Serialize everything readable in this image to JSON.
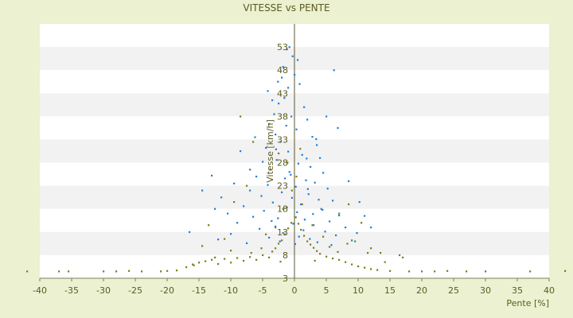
{
  "chart_data": {
    "type": "scatter",
    "title": "VITESSE vs PENTE",
    "xlabel": "Pente [%]",
    "ylabel": "Vitesse [km/h]",
    "xlim": [
      -40,
      40
    ],
    "ylim": [
      3,
      58
    ],
    "x_ticks": [
      -40,
      -35,
      -30,
      -25,
      -20,
      -15,
      -10,
      -5,
      0,
      5,
      10,
      15,
      20,
      25,
      30,
      35,
      40
    ],
    "y_ticks": [
      3,
      8,
      13,
      18,
      23,
      28,
      33,
      38,
      43,
      48,
      53
    ],
    "band_colors": [
      "#ffffff",
      "#f2f2f2"
    ],
    "plot_background": "#ffffff",
    "page_background": "#ebf1d1",
    "legend": "none",
    "series": [
      {
        "color": "#1f7fd9",
        "points": [
          [
            -1.2,
            52.5
          ],
          [
            -0.3,
            51.0
          ],
          [
            0.5,
            50.2
          ],
          [
            -1.8,
            48.7
          ],
          [
            -2.0,
            46.4
          ],
          [
            0.8,
            45.0
          ],
          [
            -1.0,
            44.2
          ],
          [
            -3.5,
            41.5
          ],
          [
            -2.5,
            40.8
          ],
          [
            1.5,
            40.0
          ],
          [
            -3.2,
            38.5
          ],
          [
            -0.5,
            38.0
          ],
          [
            2.0,
            37.3
          ],
          [
            -4.0,
            36.4
          ],
          [
            0.3,
            35.2
          ],
          [
            -3.0,
            34.1
          ],
          [
            2.8,
            33.6
          ],
          [
            -2.2,
            32.5
          ],
          [
            3.5,
            31.8
          ],
          [
            -4.5,
            31.2
          ],
          [
            -1.0,
            30.4
          ],
          [
            1.2,
            29.7
          ],
          [
            4.0,
            29.0
          ],
          [
            -5.0,
            28.2
          ],
          [
            -2.8,
            28.6
          ],
          [
            0.6,
            27.8
          ],
          [
            2.5,
            27.1
          ],
          [
            -3.8,
            26.5
          ],
          [
            -0.8,
            26.0
          ],
          [
            4.5,
            25.8
          ],
          [
            -6.0,
            25.0
          ],
          [
            -1.5,
            24.6
          ],
          [
            1.8,
            24.2
          ],
          [
            3.2,
            23.7
          ],
          [
            -4.2,
            23.2
          ],
          [
            0.2,
            22.8
          ],
          [
            5.2,
            22.4
          ],
          [
            -7.0,
            22.0
          ],
          [
            -2.0,
            21.6
          ],
          [
            2.2,
            21.2
          ],
          [
            -5.2,
            20.8
          ],
          [
            -0.4,
            20.4
          ],
          [
            3.8,
            20.0
          ],
          [
            6.0,
            19.8
          ],
          [
            -3.4,
            19.4
          ],
          [
            1.0,
            19.0
          ],
          [
            -8.0,
            18.6
          ],
          [
            -1.2,
            18.3
          ],
          [
            4.2,
            18.0
          ],
          [
            -4.8,
            17.6
          ],
          [
            0.4,
            17.3
          ],
          [
            2.9,
            16.9
          ],
          [
            7.0,
            16.6
          ],
          [
            -6.5,
            16.3
          ],
          [
            -2.6,
            16.0
          ],
          [
            1.6,
            15.7
          ],
          [
            5.5,
            15.3
          ],
          [
            -9.0,
            15.0
          ],
          [
            -0.2,
            14.8
          ],
          [
            3.0,
            14.5
          ],
          [
            -3.0,
            14.2
          ],
          [
            8.0,
            14.0
          ],
          [
            -5.5,
            13.7
          ],
          [
            1.4,
            13.4
          ],
          [
            4.8,
            13.1
          ],
          [
            -1.8,
            12.8
          ],
          [
            -10.0,
            12.6
          ],
          [
            6.5,
            12.3
          ],
          [
            0.7,
            12.0
          ],
          [
            -4.0,
            11.8
          ],
          [
            2.4,
            11.5
          ],
          [
            -12.0,
            11.4
          ],
          [
            9.0,
            11.2
          ],
          [
            -2.3,
            11.0
          ],
          [
            3.6,
            10.8
          ],
          [
            -7.5,
            10.6
          ],
          [
            0.1,
            10.4
          ],
          [
            5.8,
            10.2
          ],
          [
            -14.5,
            22.0
          ],
          [
            -13.0,
            25.2
          ],
          [
            -11.5,
            20.5
          ],
          [
            -10.5,
            17.0
          ],
          [
            11.0,
            16.5
          ],
          [
            10.2,
            19.5
          ],
          [
            -16.5,
            13.0
          ],
          [
            -6.2,
            33.5
          ],
          [
            -8.5,
            30.5
          ],
          [
            6.8,
            35.5
          ],
          [
            5.0,
            38.0
          ],
          [
            -1.6,
            42.0
          ],
          [
            6.2,
            48.0
          ],
          [
            -0.8,
            53.0
          ],
          [
            -4.2,
            43.5
          ],
          [
            -2.6,
            45.5
          ],
          [
            0.0,
            47.0
          ],
          [
            -7.0,
            26.5
          ],
          [
            8.5,
            24.0
          ],
          [
            -9.5,
            23.5
          ],
          [
            -12.5,
            18.0
          ],
          [
            12.0,
            14.0
          ],
          [
            9.8,
            12.8
          ],
          [
            -3.6,
            15.4
          ],
          [
            4.4,
            17.8
          ],
          [
            2.1,
            22.3
          ],
          [
            -0.6,
            25.4
          ],
          [
            1.9,
            28.9
          ],
          [
            -2.9,
            30.9
          ],
          [
            3.4,
            33.1
          ],
          [
            -1.3,
            36.0
          ]
        ]
      },
      {
        "color": "#7d7d14",
        "points": [
          [
            -42.0,
            4.5
          ],
          [
            -37.0,
            4.5
          ],
          [
            -35.5,
            4.5
          ],
          [
            -30.0,
            4.5
          ],
          [
            -28.0,
            4.5
          ],
          [
            -26.0,
            4.6
          ],
          [
            -24.0,
            4.5
          ],
          [
            -21.0,
            4.5
          ],
          [
            -20.0,
            4.6
          ],
          [
            -18.5,
            4.7
          ],
          [
            -17.0,
            5.4
          ],
          [
            -16.0,
            6.0
          ],
          [
            -15.0,
            6.4
          ],
          [
            -14.0,
            6.7
          ],
          [
            -13.0,
            7.0
          ],
          [
            -12.0,
            6.1
          ],
          [
            -11.0,
            7.2
          ],
          [
            -10.0,
            6.4
          ],
          [
            -9.0,
            7.4
          ],
          [
            -8.0,
            6.8
          ],
          [
            -7.0,
            7.6
          ],
          [
            -6.0,
            7.0
          ],
          [
            -5.0,
            8.0
          ],
          [
            -4.0,
            7.5
          ],
          [
            -3.5,
            8.8
          ],
          [
            -3.0,
            9.5
          ],
          [
            -2.5,
            10.5
          ],
          [
            -2.0,
            11.2
          ],
          [
            -1.5,
            12.5
          ],
          [
            -1.0,
            13.8
          ],
          [
            -0.5,
            15.0
          ],
          [
            0.2,
            16.2
          ],
          [
            0.6,
            14.8
          ],
          [
            1.0,
            13.5
          ],
          [
            1.5,
            12.2
          ],
          [
            2.0,
            11.0
          ],
          [
            2.5,
            10.3
          ],
          [
            3.0,
            9.6
          ],
          [
            3.5,
            8.9
          ],
          [
            4.0,
            8.3
          ],
          [
            5.0,
            7.7
          ],
          [
            6.0,
            7.3
          ],
          [
            7.0,
            7.0
          ],
          [
            8.0,
            6.5
          ],
          [
            9.0,
            6.0
          ],
          [
            10.0,
            5.6
          ],
          [
            11.0,
            5.3
          ],
          [
            12.0,
            5.0
          ],
          [
            13.0,
            4.8
          ],
          [
            15.0,
            4.6
          ],
          [
            18.0,
            4.5
          ],
          [
            20.0,
            4.5
          ],
          [
            22.0,
            4.5
          ],
          [
            24.0,
            4.6
          ],
          [
            27.0,
            4.5
          ],
          [
            30.0,
            4.5
          ],
          [
            37.0,
            4.5
          ],
          [
            42.5,
            4.6
          ],
          [
            -8.5,
            38.0
          ],
          [
            -6.5,
            32.5
          ],
          [
            -2.5,
            30.0
          ],
          [
            -13.5,
            14.5
          ],
          [
            -11.0,
            11.5
          ],
          [
            -7.5,
            23.0
          ],
          [
            -9.5,
            19.5
          ],
          [
            -14.5,
            10.0
          ],
          [
            10.5,
            15.0
          ],
          [
            7.0,
            17.0
          ],
          [
            8.5,
            19.0
          ],
          [
            12.0,
            9.5
          ],
          [
            9.5,
            11.0
          ],
          [
            11.5,
            8.5
          ],
          [
            16.5,
            8.0
          ],
          [
            17.0,
            7.5
          ],
          [
            13.5,
            8.5
          ],
          [
            -4.5,
            12.5
          ],
          [
            4.5,
            12.0
          ],
          [
            -3.0,
            14.0
          ],
          [
            2.8,
            14.5
          ],
          [
            -1.8,
            18.0
          ],
          [
            1.2,
            19.0
          ],
          [
            -0.4,
            22.0
          ],
          [
            0.3,
            25.0
          ],
          [
            -1.1,
            28.0
          ],
          [
            0.9,
            31.0
          ],
          [
            -5.2,
            9.5
          ],
          [
            5.5,
            9.8
          ],
          [
            -6.8,
            8.5
          ],
          [
            6.8,
            8.7
          ],
          [
            -10.0,
            9.0
          ],
          [
            8.3,
            10.5
          ],
          [
            -12.5,
            7.5
          ],
          [
            14.2,
            6.5
          ],
          [
            -15.8,
            5.8
          ],
          [
            3.2,
            6.8
          ],
          [
            -2.2,
            6.6
          ]
        ]
      }
    ]
  }
}
